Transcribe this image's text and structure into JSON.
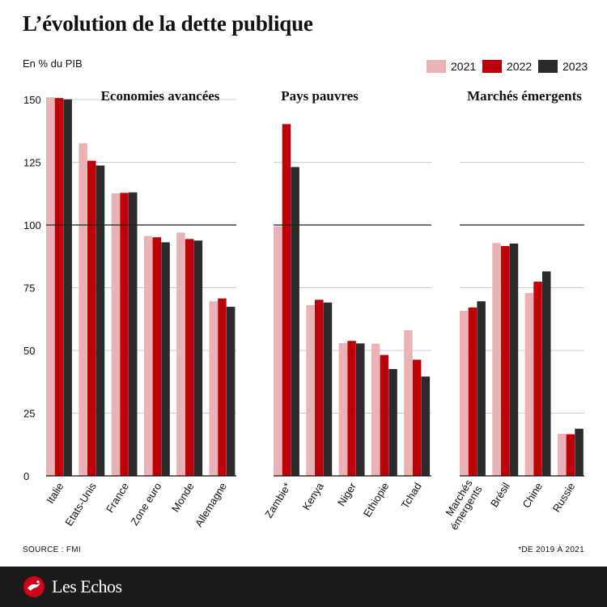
{
  "title": "L’évolution de la dette publique",
  "unit": "En % du PIB",
  "source": "SOURCE : FMI",
  "footnote": "*DE 2019 À 2021",
  "brand": "Les Echos",
  "colors": {
    "2021": "#eab2b4",
    "2022": "#c00008",
    "2023": "#2b2b2b",
    "grid": "#cccccc",
    "axis": "#111111"
  },
  "chart_data": {
    "type": "bar",
    "ylim": [
      0,
      155
    ],
    "yticks": [
      0,
      25,
      50,
      75,
      100,
      125,
      150
    ],
    "reference_line": 100,
    "legend": [
      "2021",
      "2022",
      "2023"
    ],
    "panels": [
      {
        "title": "Economies avancées",
        "categories": [
          "Italie",
          "Etats-Unis",
          "France",
          "Zone euro",
          "Monde",
          "Allemagne"
        ],
        "series": [
          {
            "name": "2021",
            "values": [
              150.9,
              132.6,
              112.6,
              95.6,
              97.0,
              69.6
            ]
          },
          {
            "name": "2022",
            "values": [
              150.6,
              125.6,
              112.8,
              95.1,
              94.4,
              70.7
            ]
          },
          {
            "name": "2023",
            "values": [
              150.1,
              123.7,
              113.0,
              93.1,
              93.8,
              67.4
            ]
          }
        ]
      },
      {
        "title": "Pays pauvres",
        "categories": [
          "Zambie*",
          "Kenya",
          "Niger",
          "Ethiopie",
          "Tchad"
        ],
        "series": [
          {
            "name": "2021",
            "values": [
              99.5,
              68.1,
              52.9,
              52.7,
              58.1
            ]
          },
          {
            "name": "2022",
            "values": [
              140.2,
              70.2,
              53.8,
              48.2,
              46.3
            ]
          },
          {
            "name": "2023",
            "values": [
              123.1,
              69.1,
              52.8,
              42.6,
              39.6
            ]
          }
        ]
      },
      {
        "title": "Marchés émergents",
        "categories": [
          "Marchés émergents",
          "Brésil",
          "Chine",
          "Russie"
        ],
        "series": [
          {
            "name": "2021",
            "values": [
              65.8,
              92.8,
              72.9,
              16.8
            ]
          },
          {
            "name": "2022",
            "values": [
              67.1,
              91.6,
              77.4,
              16.6
            ]
          },
          {
            "name": "2023",
            "values": [
              69.6,
              92.6,
              81.5,
              18.8
            ]
          }
        ]
      }
    ]
  }
}
